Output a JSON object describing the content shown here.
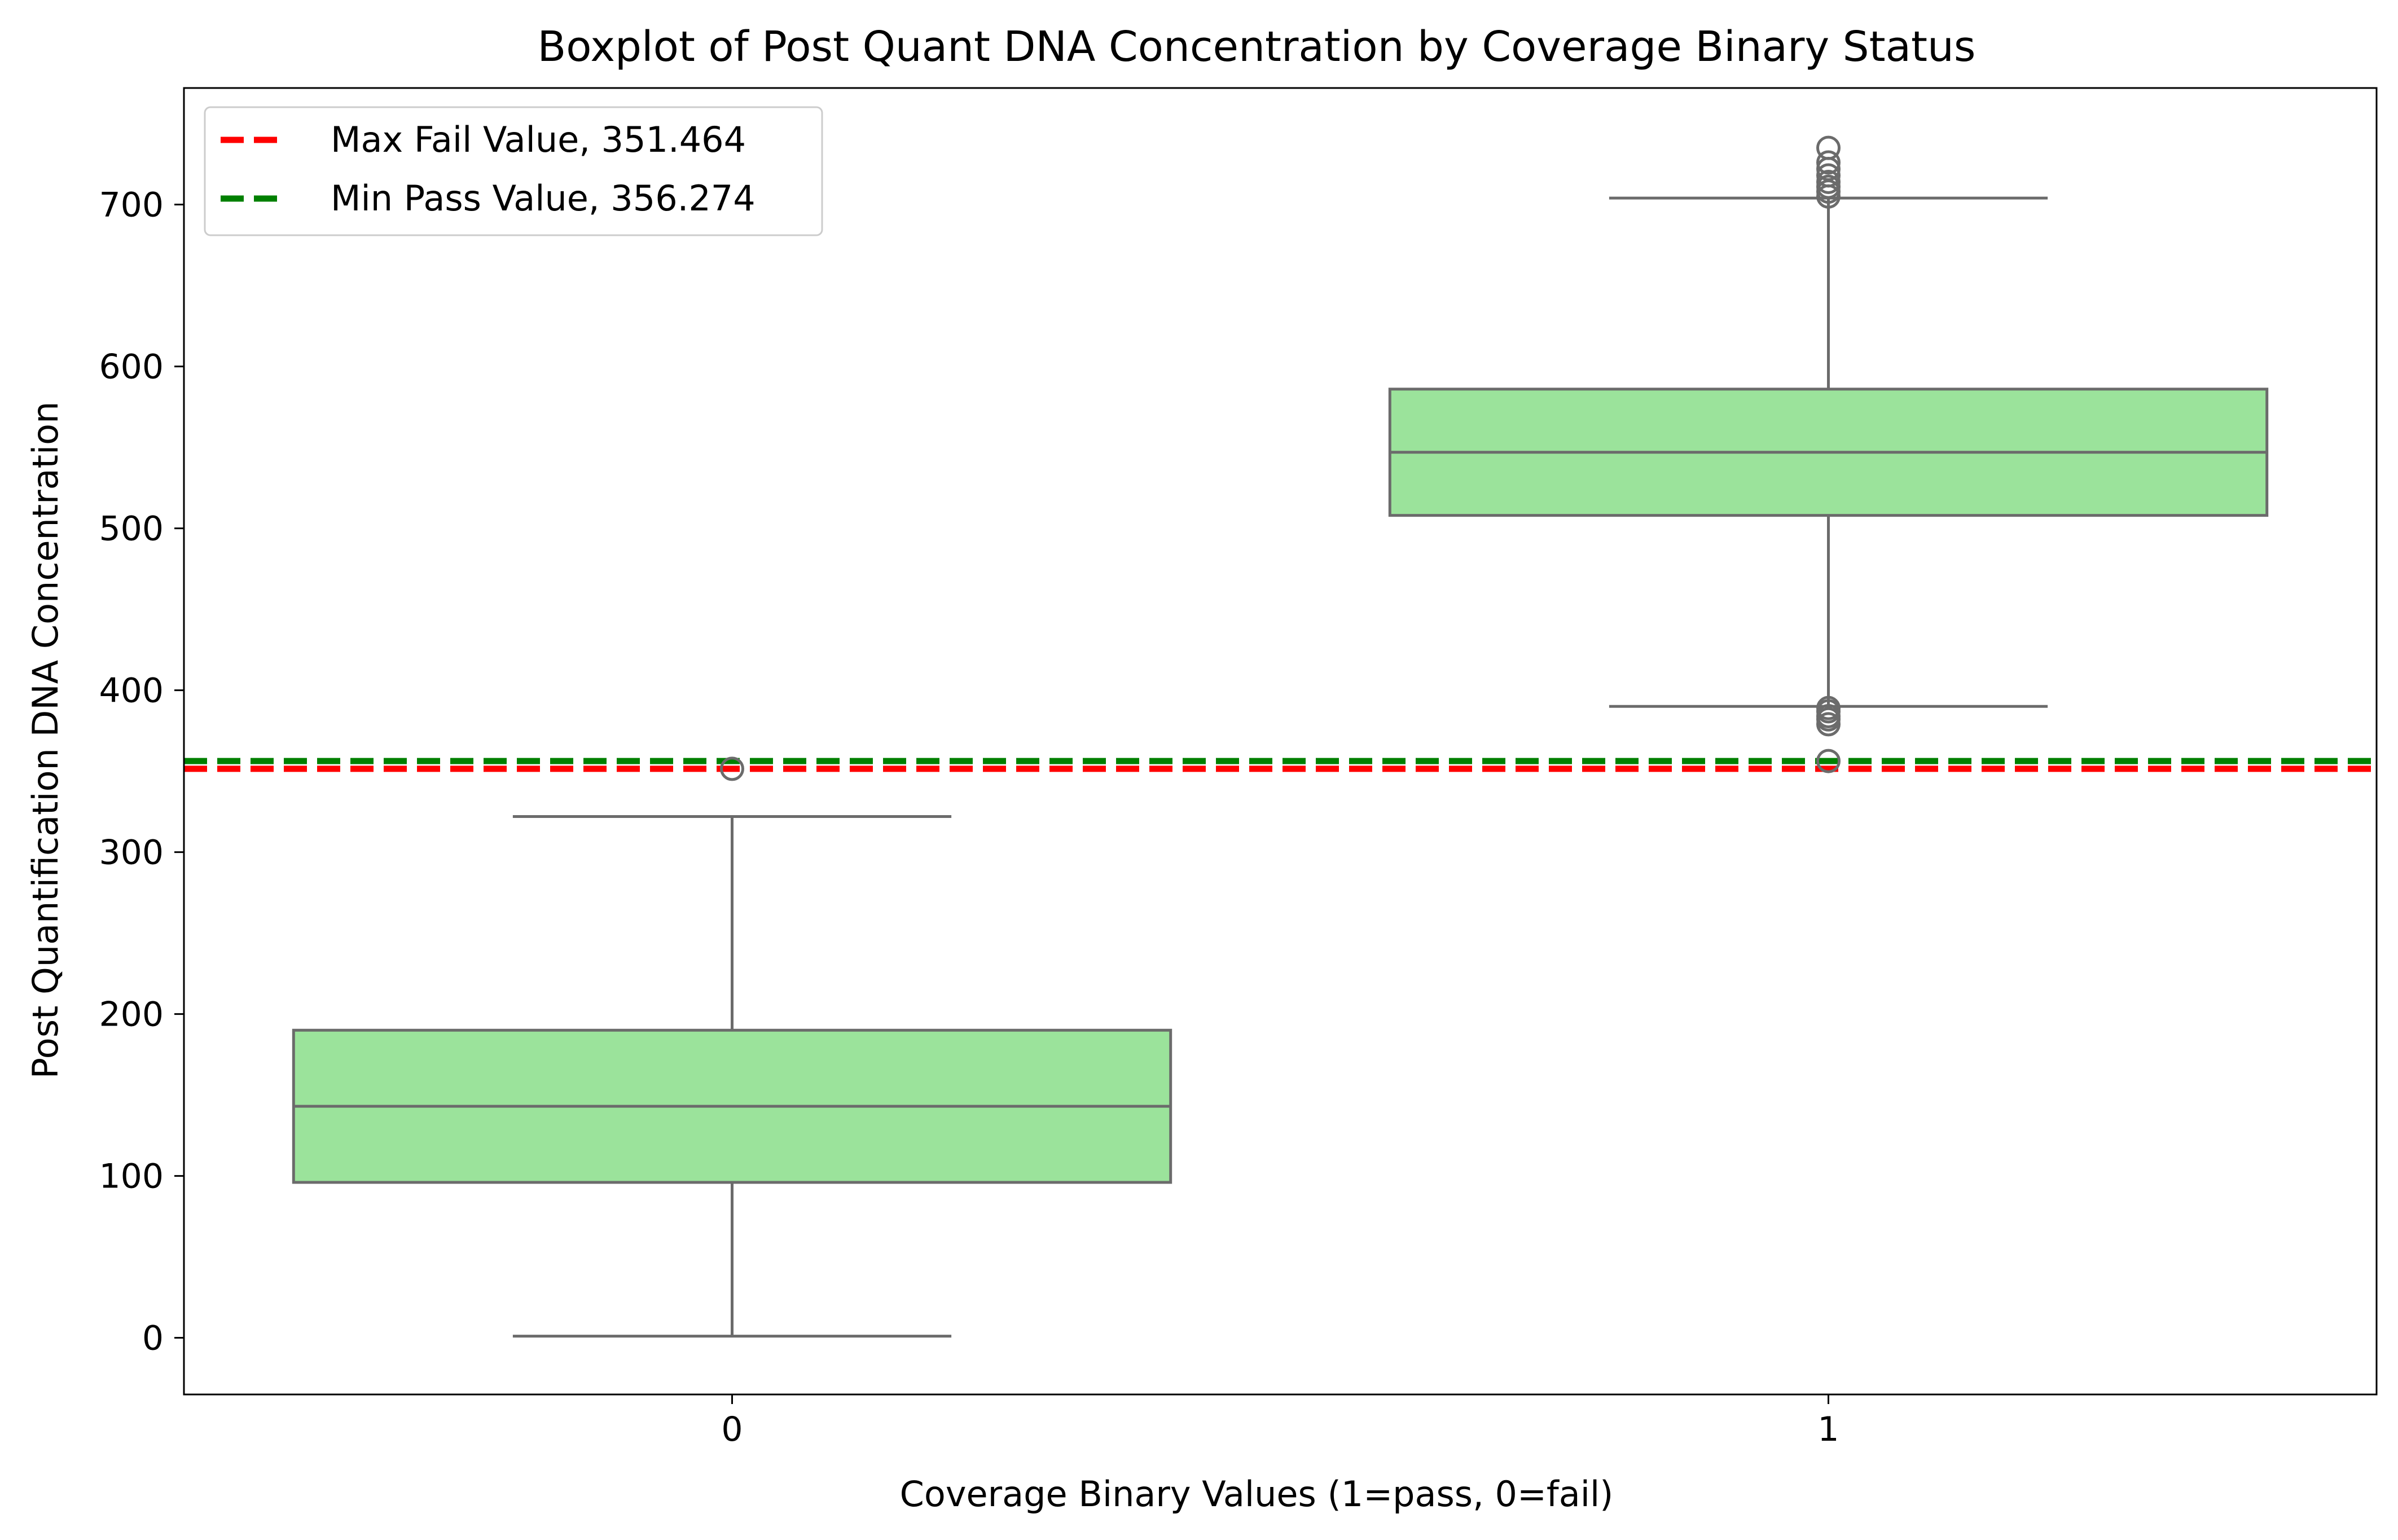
{
  "chart_data": {
    "type": "box",
    "title": "Boxplot of Post Quant DNA Concentration by Coverage Binary Status",
    "xlabel": "Coverage Binary Values (1=pass, 0=fail)",
    "ylabel": "Post Quantification DNA Concentration",
    "categories": [
      "0",
      "1"
    ],
    "ylim": [
      -35,
      772
    ],
    "yticks": [
      0,
      100,
      200,
      300,
      400,
      500,
      600,
      700
    ],
    "grid": false,
    "box_color": "#9be39b",
    "edge_color": "#6b6b6b",
    "boxes": [
      {
        "category": "0",
        "whisker_low": 1,
        "q1": 96,
        "median": 143,
        "q3": 190,
        "whisker_high": 322,
        "outliers": [
          351.464
        ]
      },
      {
        "category": "1",
        "whisker_low": 390,
        "q1": 508,
        "median": 547,
        "q3": 586,
        "whisker_high": 704,
        "outliers": [
          356.274,
          379,
          382,
          384,
          387,
          389,
          705,
          708,
          711,
          714,
          718,
          722,
          726,
          735
        ]
      }
    ],
    "reference_lines": [
      {
        "name": "Max Fail Value, 351.464",
        "value": 351.464,
        "color": "#ff0000",
        "style": "dashed"
      },
      {
        "name": "Min Pass Value, 356.274",
        "value": 356.274,
        "color": "#008000",
        "style": "dashed"
      }
    ],
    "legend": {
      "placement": "top-left",
      "entries": [
        "Max Fail Value, 351.464",
        "Min Pass Value, 356.274"
      ]
    }
  }
}
